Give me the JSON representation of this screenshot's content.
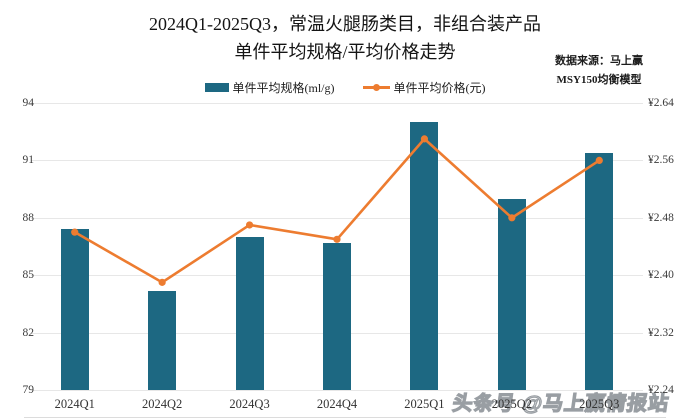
{
  "title": {
    "line1": "2024Q1-2025Q3，常温火腿肠类目，非组合装产品",
    "line2": "单件平均规格/平均价格走势"
  },
  "source": {
    "line1": "数据来源：马上赢",
    "line2": "MSY150均衡模型"
  },
  "legend": [
    {
      "label": "单件平均规格(ml/g)",
      "type": "bar",
      "color": "#1D6882"
    },
    {
      "label": "单件平均价格(元)",
      "type": "line",
      "color": "#ED7C30"
    }
  ],
  "watermark": {
    "prefix": "头条号",
    "handle": "@马上赢情报站"
  },
  "colors": {
    "bar": "#1D6882",
    "line": "#ED7C30",
    "gridline": "#e7e7e7",
    "axis_text": "#3a3a3a",
    "background": "#ffffff"
  },
  "chart_data": {
    "type": "bar",
    "subtype": "combo-bar-line-dual-axis",
    "title": "2024Q1-2025Q3，常温火腿肠类目，非组合装产品 单件平均规格/平均价格走势",
    "categories": [
      "2024Q1",
      "2024Q2",
      "2024Q3",
      "2024Q4",
      "2025Q1",
      "2025Q2",
      "2025Q3"
    ],
    "series": [
      {
        "name": "单件平均规格(ml/g)",
        "type": "bar",
        "axis": "left",
        "values": [
          87.4,
          84.2,
          87.0,
          86.7,
          93.0,
          89.0,
          91.4
        ],
        "color": "#1D6882"
      },
      {
        "name": "单件平均价格(元)",
        "type": "line",
        "axis": "right",
        "values": [
          2.46,
          2.39,
          2.47,
          2.45,
          2.59,
          2.48,
          2.56
        ],
        "color": "#ED7C30"
      }
    ],
    "left_axis": {
      "min": 79,
      "max": 94,
      "step": 3,
      "ticks": [
        "94",
        "91",
        "88",
        "85",
        "82",
        "79"
      ]
    },
    "right_axis": {
      "min": 2.24,
      "max": 2.64,
      "step": 0.08,
      "ticks": [
        "¥2.64",
        "¥2.56",
        "¥2.48",
        "¥2.40",
        "¥2.32",
        "¥2.24"
      ]
    },
    "grid": true,
    "legend_position": "top",
    "xlabel": "",
    "ylabel_left": "单件平均规格(ml/g)",
    "ylabel_right": "单件平均价格(元)"
  }
}
